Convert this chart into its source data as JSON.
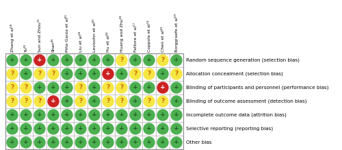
{
  "authors": [
    "Zhang et al¹⁸",
    "Yu²⁰",
    "Sun and Zhou¹⁵",
    "Shan²⁶",
    "Piña-Garza et al²¹",
    "Liu et al¹⁸",
    "Levisohn et al²⁵",
    "Hu et al²⁴",
    "Huang and Zhu²²",
    "Fattore et al¹⁷",
    "Coppola et al¹⁴",
    "Chen et al²³",
    "Borggraefe et al¹⁹"
  ],
  "bias_labels": [
    "Random sequence generation (selection bias)",
    "Allocation concealment (selection bias)",
    "Blinding of participants and personnel (performance bias)",
    "Blinding of outcome assessment (detection bias)",
    "Incomplete outcome data (attrition bias)",
    "Selective reporting (reporting bias)",
    "Other bias"
  ],
  "grid": [
    [
      "G",
      "G",
      "R",
      "G",
      "G",
      "G",
      "G",
      "G",
      "Y",
      "G",
      "G",
      "Y",
      "G"
    ],
    [
      "Y",
      "G",
      "Y",
      "Y",
      "G",
      "G",
      "G",
      "R",
      "G",
      "Y",
      "Y",
      "G",
      "Y"
    ],
    [
      "Y",
      "Y",
      "G",
      "G",
      "G",
      "Y",
      "G",
      "Y",
      "Y",
      "G",
      "G",
      "R",
      "G"
    ],
    [
      "Y",
      "Y",
      "Y",
      "R",
      "G",
      "Y",
      "G",
      "Y",
      "Y",
      "G",
      "Y",
      "Y",
      "G"
    ],
    [
      "G",
      "G",
      "G",
      "G",
      "G",
      "G",
      "G",
      "G",
      "G",
      "G",
      "G",
      "G",
      "G"
    ],
    [
      "G",
      "G",
      "G",
      "G",
      "G",
      "G",
      "G",
      "G",
      "G",
      "G",
      "G",
      "G",
      "G"
    ],
    [
      "G",
      "G",
      "G",
      "G",
      "G",
      "G",
      "G",
      "G",
      "G",
      "G",
      "G",
      "G",
      "G"
    ]
  ],
  "colors": {
    "G": "#4caf50",
    "R": "#cc2222",
    "Y": "#f5e642"
  },
  "symbol": {
    "G": "+",
    "R": "+",
    "Y": "?"
  },
  "symbol_color": {
    "G": "#1a5c1a",
    "R": "#ffffff",
    "Y": "#cc6600"
  },
  "fig_width": 5.0,
  "fig_height": 2.19,
  "dpi": 100
}
